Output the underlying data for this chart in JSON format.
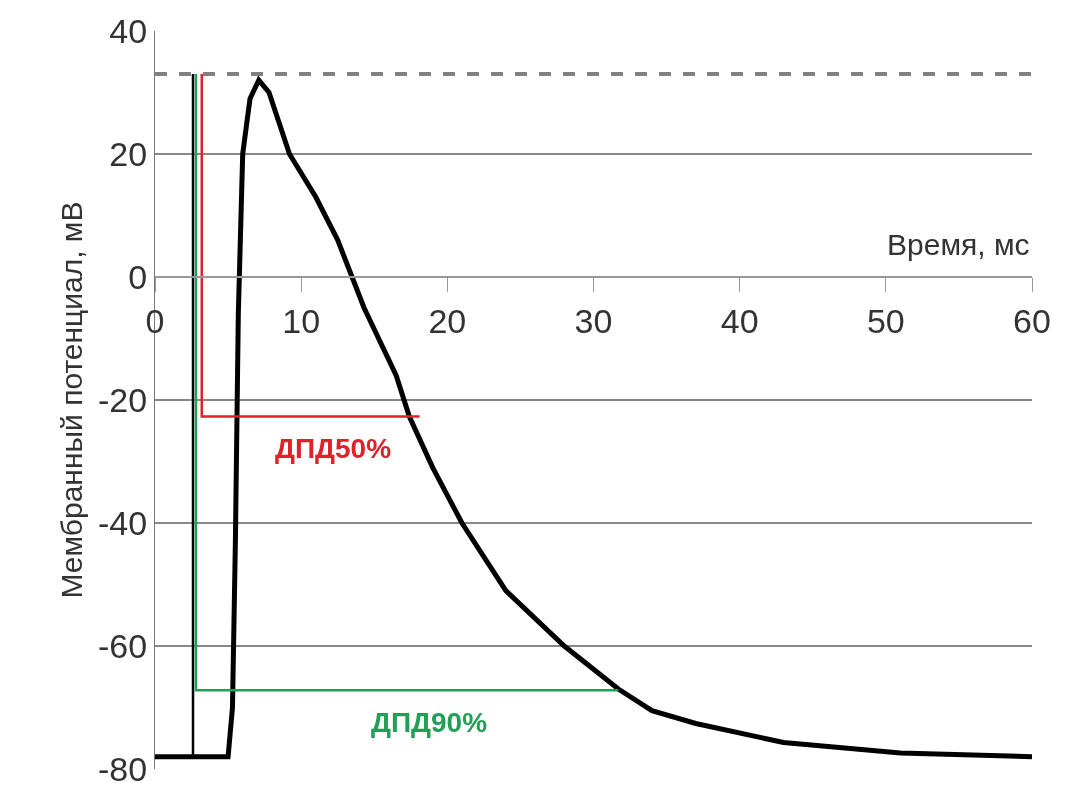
{
  "chart_data": {
    "type": "line",
    "xlabel": "Время, мс",
    "ylabel": "Мембранный потенциал, мВ",
    "xlim": [
      0,
      60
    ],
    "xticks": [
      0,
      10,
      20,
      30,
      40,
      50,
      60
    ],
    "ylim": [
      -80,
      40
    ],
    "yticks": [
      -80,
      -60,
      -40,
      -20,
      0,
      20,
      40
    ],
    "grid": "y",
    "legend": false,
    "marker": "none",
    "series": [
      {
        "color": "#000000",
        "x": [
          0,
          5,
          5.3,
          5.5,
          5.7,
          6,
          6.5,
          7.1,
          7.8,
          9.2,
          11,
          12.5,
          14.3,
          16.5,
          17.4,
          19,
          21,
          24,
          28,
          31.7,
          34,
          37,
          43,
          51,
          60
        ],
        "values": [
          -78,
          -78,
          -70,
          -43,
          -6,
          20,
          29,
          32,
          30,
          20,
          13,
          6,
          -5,
          -16,
          -22.7,
          -31,
          -40,
          -51,
          -60,
          -67,
          -70.5,
          -72.6,
          -75.7,
          -77.4,
          -78
        ]
      },
      {
        "color": "#000000",
        "x": [
          2.6,
          2.6
        ],
        "values": [
          -78,
          33
        ]
      },
      {
        "name": "ДПД50%",
        "color": "#e0202a",
        "x": [
          3.2,
          3.2,
          18.1
        ],
        "values": [
          33,
          -22.7,
          -22.7
        ]
      },
      {
        "name": "ДПД90%",
        "color": "#1fa055",
        "x": [
          2.8,
          2.8,
          31.7
        ],
        "values": [
          33,
          -67.2,
          -67.2
        ]
      }
    ],
    "ref_lines": [
      {
        "axis": "y",
        "value": 33,
        "color": "#808080",
        "line_style": "dashed"
      }
    ]
  }
}
